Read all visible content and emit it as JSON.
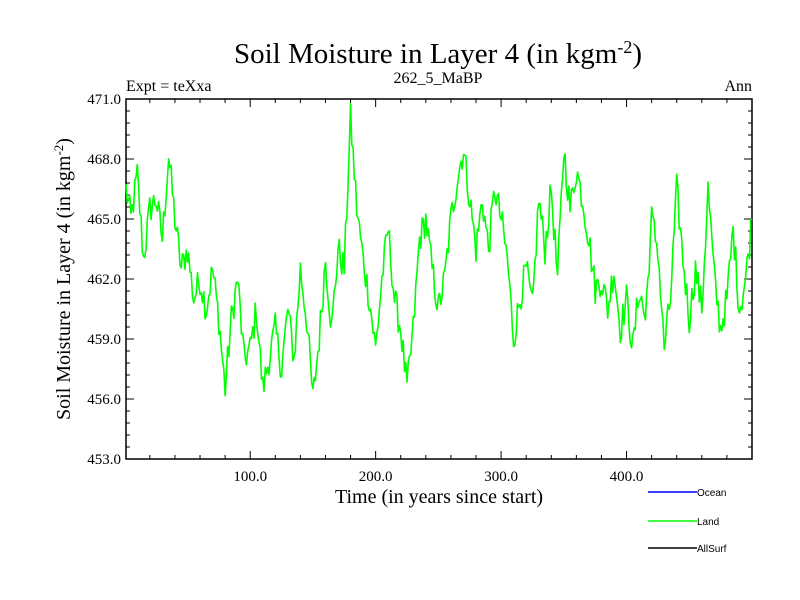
{
  "chart_data": {
    "type": "line",
    "title": "Soil Moisture in Layer 4 (in kgm",
    "title_sup": "-2",
    "title_end": ")",
    "subtitle_left": "Expt = teXxa",
    "subtitle_center": "262_5_MaBP",
    "subtitle_right": "Ann",
    "xlabel": "Time (in years since start)",
    "ylabel": "Soil Moisture in Layer 4 (in kgm",
    "ylabel_sup": "-2",
    "ylabel_end": ")",
    "xlim": [
      1,
      500
    ],
    "ylim": [
      453.0,
      471.0
    ],
    "x_ticks": [
      100,
      200,
      300,
      400
    ],
    "x_tick_labels": [
      "100.0",
      "200.0",
      "300.0",
      "400.0"
    ],
    "y_ticks": [
      453,
      456,
      459,
      462,
      465,
      468,
      471
    ],
    "y_tick_labels": [
      "453.0",
      "456.0",
      "459.0",
      "462.0",
      "465.0",
      "468.0",
      "471.0"
    ],
    "legend": [
      {
        "name": "Ocean",
        "color": "#0000ff"
      },
      {
        "name": "Land",
        "color": "#00ff00"
      },
      {
        "name": "AllSurf",
        "color": "#000000"
      }
    ],
    "series": [
      {
        "name": "Land",
        "color": "#00ff00",
        "anchors_x": [
          1,
          5,
          10,
          15,
          20,
          25,
          30,
          35,
          40,
          45,
          50,
          55,
          60,
          65,
          70,
          75,
          80,
          85,
          90,
          95,
          100,
          105,
          110,
          115,
          120,
          125,
          130,
          135,
          140,
          145,
          150,
          155,
          160,
          165,
          170,
          175,
          180,
          185,
          190,
          195,
          200,
          205,
          210,
          215,
          220,
          225,
          230,
          235,
          240,
          245,
          250,
          255,
          260,
          265,
          270,
          275,
          280,
          285,
          290,
          295,
          300,
          305,
          310,
          315,
          320,
          325,
          330,
          335,
          340,
          345,
          350,
          355,
          360,
          365,
          370,
          375,
          380,
          385,
          390,
          395,
          400,
          405,
          410,
          415,
          420,
          425,
          430,
          435,
          440,
          445,
          450,
          455,
          460,
          465,
          470,
          475,
          480,
          485,
          490,
          495,
          500
        ],
        "anchors_y": [
          466.5,
          465.0,
          467.2,
          463.0,
          465.5,
          466.0,
          464.0,
          468.2,
          465.0,
          462.5,
          463.5,
          461.0,
          462.0,
          460.5,
          462.5,
          460.0,
          456.5,
          460.0,
          462.0,
          458.0,
          458.5,
          460.5,
          456.5,
          458.0,
          459.5,
          457.5,
          460.5,
          458.0,
          462.5,
          460.0,
          456.0,
          459.0,
          463.0,
          459.5,
          463.5,
          462.5,
          470.0,
          465.5,
          463.0,
          461.0,
          458.5,
          462.0,
          464.5,
          461.0,
          459.5,
          456.5,
          459.5,
          464.0,
          465.0,
          462.5,
          460.5,
          462.0,
          465.0,
          467.0,
          468.5,
          466.0,
          463.5,
          466.0,
          463.5,
          466.5,
          465.0,
          463.0,
          459.0,
          461.0,
          462.5,
          460.5,
          466.0,
          463.5,
          466.5,
          462.0,
          468.5,
          465.5,
          467.5,
          466.0,
          464.0,
          461.5,
          462.0,
          460.5,
          462.5,
          459.5,
          461.0,
          458.5,
          461.5,
          460.0,
          465.0,
          463.5,
          458.5,
          461.0,
          466.5,
          463.0,
          460.0,
          462.5,
          460.5,
          466.5,
          462.0,
          459.5,
          461.0,
          464.5,
          460.5,
          462.0,
          465.0
        ]
      },
      {
        "name": "Ocean",
        "color": "#0000ff",
        "anchors_x": [],
        "anchors_y": []
      },
      {
        "name": "AllSurf",
        "color": "#000000",
        "anchors_x": [],
        "anchors_y": []
      }
    ]
  }
}
